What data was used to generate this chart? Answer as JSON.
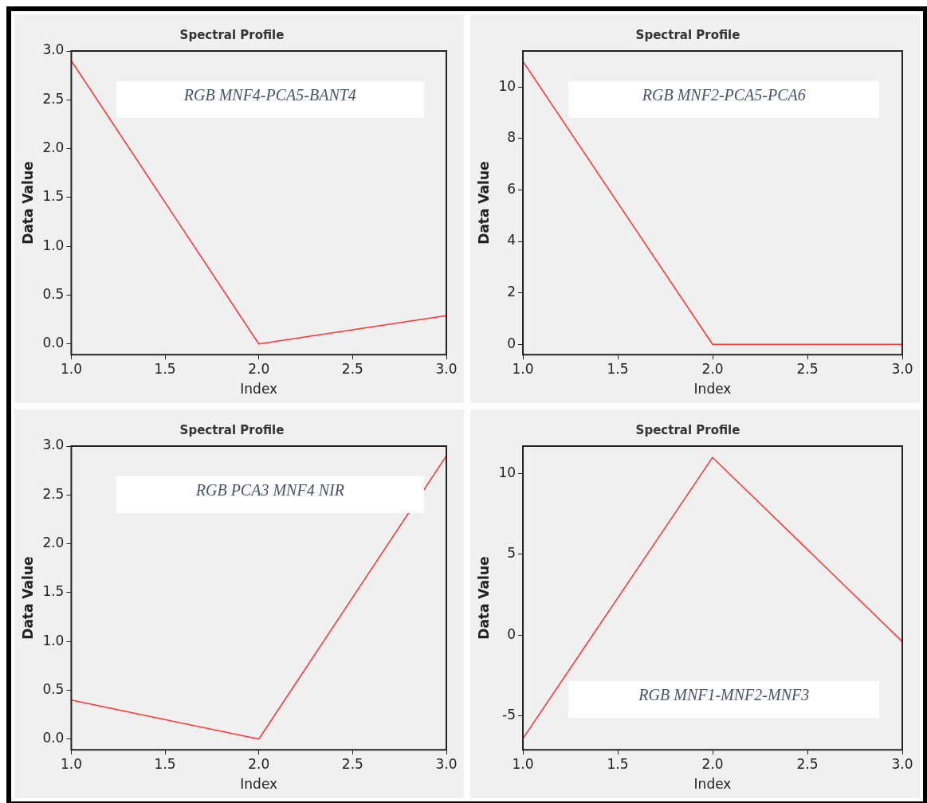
{
  "chart_data": [
    {
      "type": "line",
      "title": "Spectral Profile",
      "xlabel": "Index",
      "ylabel": "Data Value",
      "annotations": [
        "RGB MNF4-PCA5-BANT4"
      ],
      "x": [
        1,
        2,
        3
      ],
      "series": [
        {
          "color": "#ff3333",
          "values": [
            2.9,
            0,
            0.29
          ]
        }
      ],
      "xlim": [
        1,
        3
      ],
      "xticks": [
        {
          "value": 1,
          "label": "1.0"
        },
        {
          "value": 1.5,
          "label": "1.5"
        },
        {
          "value": 2,
          "label": "2.0"
        },
        {
          "value": 2.5,
          "label": "2.5"
        },
        {
          "value": 3,
          "label": "3.0"
        }
      ],
      "ylim": [
        -0.11,
        3
      ],
      "yticks": [
        {
          "value": 0,
          "label": "0.0"
        },
        {
          "value": 0.5,
          "label": "0.5"
        },
        {
          "value": 1,
          "label": "1.0"
        },
        {
          "value": 1.5,
          "label": "1.5"
        },
        {
          "value": 2,
          "label": "2.0"
        },
        {
          "value": 2.5,
          "label": "2.5"
        },
        {
          "value": 3,
          "label": "3.0"
        }
      ],
      "grid": false,
      "legend": false,
      "marker": "none"
    },
    {
      "type": "line",
      "title": "Spectral Profile",
      "xlabel": "Index",
      "ylabel": "Data Value",
      "annotations": [
        "RGB MNF2-PCA5-PCA6"
      ],
      "x": [
        1,
        2,
        3
      ],
      "series": [
        {
          "color": "#ff3333",
          "values": [
            11,
            0,
            0
          ]
        }
      ],
      "xlim": [
        1,
        3
      ],
      "xticks": [
        {
          "value": 1,
          "label": "1.0"
        },
        {
          "value": 1.5,
          "label": "1.5"
        },
        {
          "value": 2,
          "label": "2.0"
        },
        {
          "value": 2.5,
          "label": "2.5"
        },
        {
          "value": 3,
          "label": "3.0"
        }
      ],
      "ylim": [
        -0.4,
        11.4
      ],
      "yticks": [
        0,
        2,
        4,
        6,
        8,
        10
      ],
      "grid": false,
      "legend": false,
      "marker": "none"
    },
    {
      "type": "line",
      "title": "Spectral Profile",
      "xlabel": "Index",
      "ylabel": "Data Value",
      "annotations": [
        "RGB PCA3 MNF4 NIR"
      ],
      "x": [
        1,
        2,
        3
      ],
      "series": [
        {
          "color": "#ff3333",
          "values": [
            0.4,
            0,
            2.9
          ]
        }
      ],
      "xlim": [
        1,
        3
      ],
      "xticks": [
        {
          "value": 1,
          "label": "1.0"
        },
        {
          "value": 1.5,
          "label": "1.5"
        },
        {
          "value": 2,
          "label": "2.0"
        },
        {
          "value": 2.5,
          "label": "2.5"
        },
        {
          "value": 3,
          "label": "3.0"
        }
      ],
      "ylim": [
        -0.11,
        3
      ],
      "yticks": [
        {
          "value": 0,
          "label": "0.0"
        },
        {
          "value": 0.5,
          "label": "0.5"
        },
        {
          "value": 1,
          "label": "1.0"
        },
        {
          "value": 1.5,
          "label": "1.5"
        },
        {
          "value": 2,
          "label": "2.0"
        },
        {
          "value": 2.5,
          "label": "2.5"
        },
        {
          "value": 3,
          "label": "3.0"
        }
      ],
      "grid": false,
      "legend": false,
      "marker": "none"
    },
    {
      "type": "line",
      "title": "Spectral Profile",
      "xlabel": "Index",
      "ylabel": "Data Value",
      "annotations": [
        "RGB MNF1-MNF2-MNF3"
      ],
      "x": [
        1,
        2,
        3
      ],
      "series": [
        {
          "color": "#ff3333",
          "values": [
            -6.4,
            11,
            -0.4
          ]
        }
      ],
      "xlim": [
        1,
        3
      ],
      "xticks": [
        {
          "value": 1,
          "label": "1.0"
        },
        {
          "value": 1.5,
          "label": "1.5"
        },
        {
          "value": 2,
          "label": "2.0"
        },
        {
          "value": 2.5,
          "label": "2.5"
        },
        {
          "value": 3,
          "label": "3.0"
        }
      ],
      "ylim": [
        -7.1,
        11.7
      ],
      "yticks": [
        -5,
        0,
        5,
        10
      ],
      "grid": false,
      "legend": false,
      "marker": "none"
    }
  ]
}
